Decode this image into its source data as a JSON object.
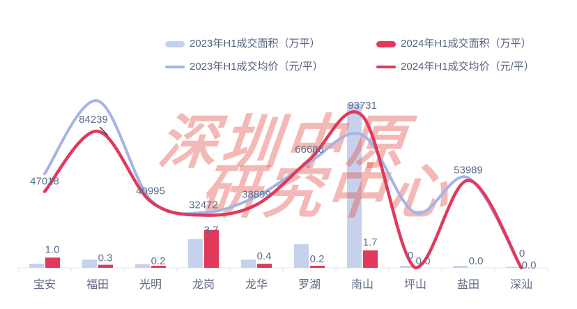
{
  "watermark": {
    "line1": "深圳中原",
    "line2": "研究中心"
  },
  "colors": {
    "accent_red": "#e0395c",
    "bar_blue": "#c6d2ec",
    "line_blue": "#a5b4e6",
    "label_text": "#5d6b8c",
    "category_text": "#5e6a84",
    "axis_line": "#e4e7ee",
    "tick": "#d8dce6",
    "watermark_red": "rgba(228,80,72,0.40)",
    "leader_line": "#3a3f4a"
  },
  "chart_data": {
    "type": "combo-bar-line",
    "categories": [
      "宝安",
      "福田",
      "光明",
      "龙岗",
      "龙华",
      "罗湖",
      "南山",
      "坪山",
      "盐田",
      "深汕"
    ],
    "series": [
      {
        "name": "2023年H1成交面积（万平）",
        "type": "bar",
        "color": "#c6d2ec",
        "values": [
          0.4,
          0.8,
          0.35,
          2.8,
          0.8,
          2.3,
          16.0,
          0.2,
          0.2,
          0.1
        ]
      },
      {
        "name": "2024年H1成交面积（万平）",
        "type": "bar",
        "color": "#e0395c",
        "values": [
          1.0,
          0.3,
          0.2,
          3.7,
          0.4,
          0.2,
          1.7,
          0.0,
          0.0,
          0.0
        ],
        "data_labels": [
          "1.0",
          "0.3",
          "0.2",
          "3.7",
          "0.4",
          "0.2",
          "1.7",
          "0.0",
          "0.0",
          "0.0"
        ]
      },
      {
        "name": "2023年H1成交均价（元/平）",
        "type": "line",
        "color": "#a5b4e6",
        "values": [
          58000,
          103000,
          42000,
          34000,
          44000,
          65000,
          82000,
          34000,
          55500,
          0
        ]
      },
      {
        "name": "2024年H1成交均价（元/平）",
        "type": "line",
        "color": "#e0395c",
        "values": [
          47018,
          84239,
          40995,
          32472,
          38899,
          66686,
          93731,
          0,
          53989,
          0
        ],
        "data_labels": [
          "47018",
          "84239",
          "40995",
          "32472",
          "38899",
          "66686",
          "93731",
          "0",
          "53989",
          "0"
        ]
      }
    ],
    "legend_position": "top",
    "grid": false,
    "value_axes_hidden": true
  }
}
